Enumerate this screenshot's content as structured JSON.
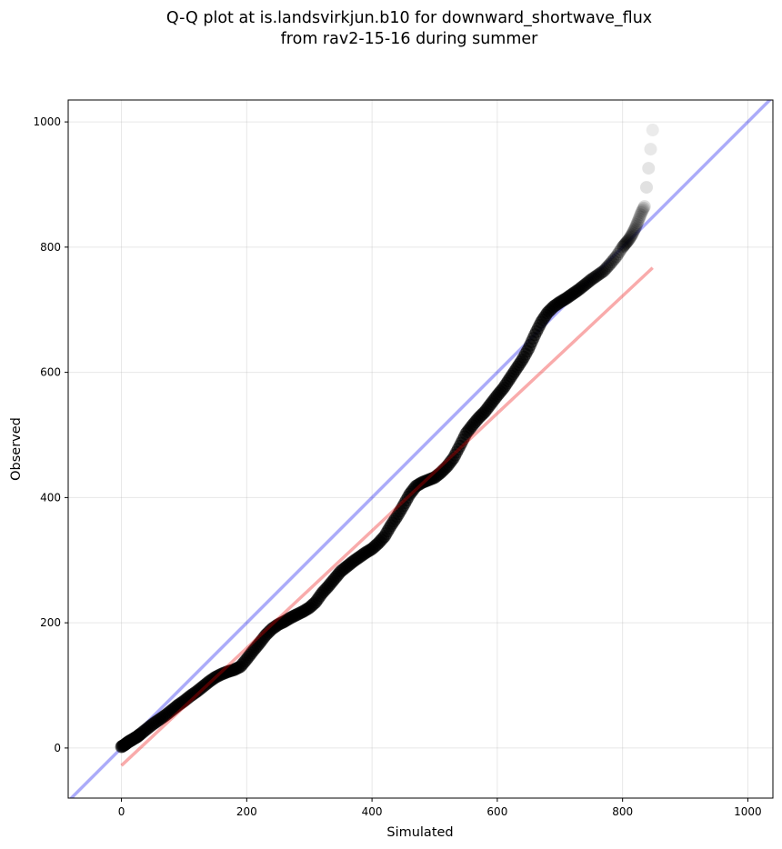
{
  "chart_data": {
    "type": "scatter",
    "title_lines": [
      "Q-Q plot at is.landsvirkjun.b10 for downward_shortwave_flux",
      "from rav2-15-16 during summer"
    ],
    "xlabel": "Simulated",
    "ylabel": "Observed",
    "xlim": [
      -85,
      1040
    ],
    "ylim": [
      -80,
      1035
    ],
    "xticks": [
      0,
      200,
      400,
      600,
      800,
      1000
    ],
    "yticks": [
      0,
      200,
      400,
      600,
      800,
      1000
    ],
    "grid": true,
    "reference_line": {
      "kind": "1:1",
      "color": "#0000ee",
      "opacity": 0.33
    },
    "fit_line": {
      "x": [
        0,
        848
      ],
      "y": [
        -28,
        767
      ],
      "color": "#ee0000",
      "opacity": 0.33
    },
    "points": {
      "x": [
        0,
        5,
        10,
        15,
        20,
        25,
        30,
        40,
        50,
        60,
        70,
        80,
        90,
        100,
        110,
        120,
        130,
        140,
        150,
        160,
        170,
        180,
        190,
        200,
        210,
        220,
        230,
        240,
        250,
        260,
        270,
        280,
        290,
        300,
        310,
        320,
        330,
        340,
        350,
        360,
        370,
        380,
        390,
        400,
        410,
        420,
        430,
        440,
        450,
        460,
        470,
        480,
        490,
        500,
        510,
        520,
        530,
        540,
        550,
        560,
        570,
        580,
        590,
        600,
        610,
        620,
        630,
        640,
        650,
        660,
        670,
        680,
        690,
        700,
        710,
        720,
        730,
        740,
        750,
        760,
        770,
        780,
        790,
        800,
        805,
        810,
        815,
        820,
        825,
        830,
        835,
        848
      ],
      "y": [
        2,
        5,
        9,
        12,
        15,
        18,
        22,
        30,
        38,
        45,
        52,
        60,
        68,
        75,
        83,
        90,
        98,
        106,
        113,
        118,
        122,
        125,
        130,
        142,
        155,
        167,
        180,
        190,
        197,
        202,
        208,
        213,
        218,
        224,
        233,
        247,
        258,
        270,
        282,
        290,
        298,
        305,
        312,
        318,
        327,
        338,
        355,
        370,
        387,
        405,
        418,
        424,
        428,
        432,
        440,
        450,
        463,
        482,
        502,
        515,
        527,
        537,
        550,
        563,
        575,
        590,
        605,
        620,
        638,
        660,
        680,
        695,
        705,
        712,
        718,
        725,
        732,
        740,
        748,
        755,
        762,
        773,
        785,
        800,
        806,
        812,
        820,
        830,
        842,
        855,
        865,
        987
      ]
    }
  }
}
